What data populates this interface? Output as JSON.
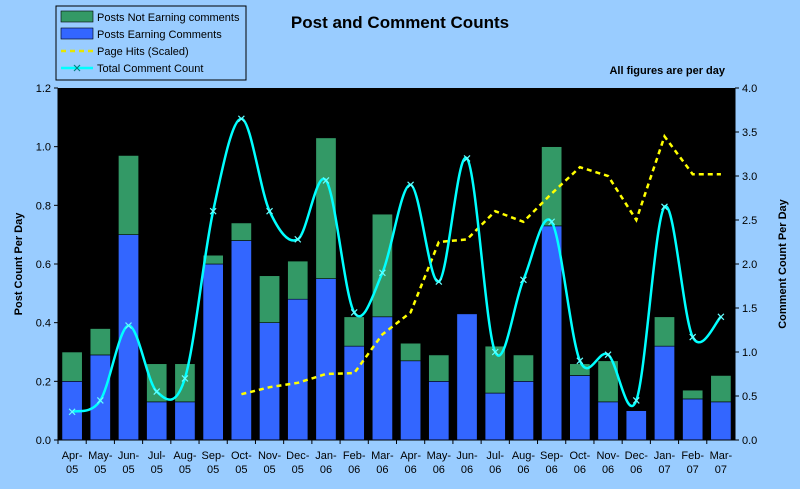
{
  "chart_data": {
    "type": "bar",
    "title": "Post and Comment Counts",
    "subtitle": "All figures are per day",
    "ylabel": "Post Count Per Day",
    "y2label": "Comment Count Per Day",
    "ylim": [
      0,
      1.2
    ],
    "y2lim": [
      0,
      4.0
    ],
    "yticks": [
      "0.0",
      "0.2",
      "0.4",
      "0.6",
      "0.8",
      "1.0",
      "1.2"
    ],
    "y2ticks": [
      "0.0",
      "0.5",
      "1.0",
      "1.5",
      "2.0",
      "2.5",
      "3.0",
      "3.5",
      "4.0"
    ],
    "categories": [
      "Apr-05",
      "May-05",
      "Jun-05",
      "Jul-05",
      "Aug-05",
      "Sep-05",
      "Oct-05",
      "Nov-05",
      "Dec-05",
      "Jan-06",
      "Feb-06",
      "Mar-06",
      "Apr-06",
      "May-06",
      "Jun-06",
      "Jul-06",
      "Aug-06",
      "Sep-06",
      "Oct-06",
      "Nov-06",
      "Dec-06",
      "Jan-07",
      "Feb-07",
      "Mar-07"
    ],
    "series": [
      {
        "name": "Posts Earning Comments",
        "type": "bar-stacked",
        "color": "#3366ff",
        "values": [
          0.2,
          0.29,
          0.7,
          0.13,
          0.13,
          0.6,
          0.68,
          0.4,
          0.48,
          0.55,
          0.32,
          0.42,
          0.27,
          0.2,
          0.43,
          0.16,
          0.2,
          0.73,
          0.22,
          0.13,
          0.1,
          0.32,
          0.14,
          0.13
        ]
      },
      {
        "name": "Posts Not Earning comments",
        "type": "bar-stacked",
        "color": "#339966",
        "values": [
          0.1,
          0.09,
          0.27,
          0.13,
          0.13,
          0.03,
          0.06,
          0.16,
          0.13,
          0.48,
          0.1,
          0.35,
          0.06,
          0.09,
          0.0,
          0.16,
          0.09,
          0.27,
          0.04,
          0.14,
          0.0,
          0.1,
          0.03,
          0.09
        ]
      },
      {
        "name": "Page Hits (Scaled)",
        "type": "line-dashed",
        "axis": "y2",
        "color": "#ffff00",
        "values": [
          null,
          null,
          null,
          null,
          null,
          null,
          0.52,
          0.6,
          0.65,
          0.75,
          0.76,
          1.2,
          1.45,
          2.25,
          2.28,
          2.6,
          2.48,
          2.8,
          3.1,
          3.0,
          2.5,
          3.45,
          3.02,
          3.02
        ]
      },
      {
        "name": "Total Comment Count",
        "type": "line-smooth",
        "axis": "y2",
        "color": "#00ffff",
        "values": [
          0.32,
          0.45,
          1.3,
          0.55,
          0.7,
          2.6,
          3.65,
          2.6,
          2.28,
          2.95,
          1.45,
          1.9,
          2.9,
          1.8,
          3.2,
          1.0,
          1.82,
          2.48,
          0.9,
          0.97,
          0.45,
          2.65,
          1.17,
          1.4
        ]
      }
    ],
    "legend": {
      "placement": "top-left",
      "entries": [
        "Posts Not Earning comments",
        "Posts Earning Comments",
        "Page Hits (Scaled)",
        "Total Comment Count"
      ]
    },
    "grid": false,
    "plot_background": "#000000",
    "page_background": "#99ccff"
  }
}
